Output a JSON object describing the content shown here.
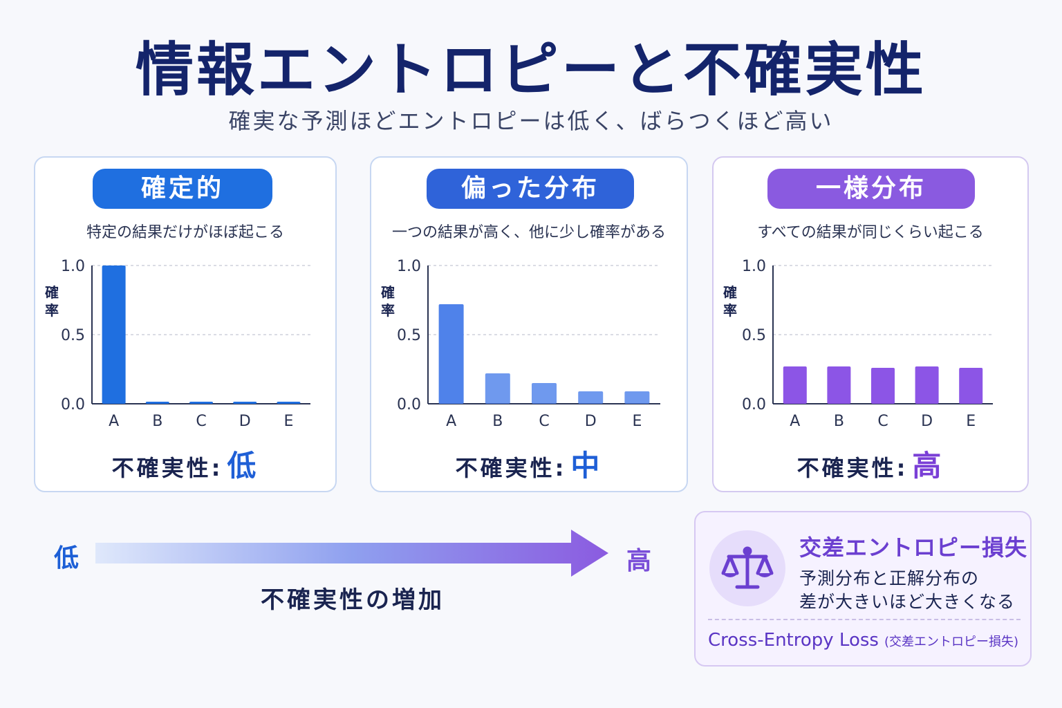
{
  "header": {
    "title": "情報エントロピーと不確実性",
    "subtitle": "確実な予測ほどエントロピーは低く、ばらつくほど高い"
  },
  "cards": [
    {
      "label": "確定的",
      "description": "特定の結果だけがほぼ起こる",
      "uncertainty_label": "不確実性:",
      "uncertainty_level": "低",
      "accent": "#1f6fe0"
    },
    {
      "label": "偏った分布",
      "description": "一つの結果が高く、他に少し確率がある",
      "uncertainty_label": "不確実性:",
      "uncertainty_level": "中",
      "accent": "#2f63d9"
    },
    {
      "label": "一様分布",
      "description": "すべての結果が同じくらい起こる",
      "uncertainty_label": "不確実性:",
      "uncertainty_level": "高",
      "accent": "#8a5ae0"
    }
  ],
  "chart_data": [
    {
      "type": "bar",
      "categories": [
        "A",
        "B",
        "C",
        "D",
        "E"
      ],
      "values": [
        1.0,
        0.01,
        0.01,
        0.01,
        0.01
      ],
      "ylabel": "確率",
      "ylim": [
        0,
        1.0
      ],
      "yticks": [
        "0.0",
        "0.5",
        "1.0"
      ],
      "grid": true,
      "color": "#1f6fe0"
    },
    {
      "type": "bar",
      "categories": [
        "A",
        "B",
        "C",
        "D",
        "E"
      ],
      "values": [
        0.72,
        0.22,
        0.15,
        0.09,
        0.09
      ],
      "ylabel": "確率",
      "ylim": [
        0,
        1.0
      ],
      "yticks": [
        "0.0",
        "0.5",
        "1.0"
      ],
      "grid": true,
      "color": "#4f82ea"
    },
    {
      "type": "bar",
      "categories": [
        "A",
        "B",
        "C",
        "D",
        "E"
      ],
      "values": [
        0.27,
        0.27,
        0.26,
        0.27,
        0.26
      ],
      "ylabel": "確率",
      "ylim": [
        0,
        1.0
      ],
      "yticks": [
        "0.0",
        "0.5",
        "1.0"
      ],
      "grid": true,
      "color": "#8c55e6"
    }
  ],
  "arrow": {
    "low": "低",
    "high": "高",
    "caption": "不確実性の増加"
  },
  "cross_entropy": {
    "icon": "scale-icon",
    "title": "交差エントロピー損失",
    "line1": "予測分布と正解分布の",
    "line2": "差が大きいほど大きくなる",
    "footer": "Cross-Entropy Loss",
    "footer_note": "(交差エントロピー損失)"
  }
}
